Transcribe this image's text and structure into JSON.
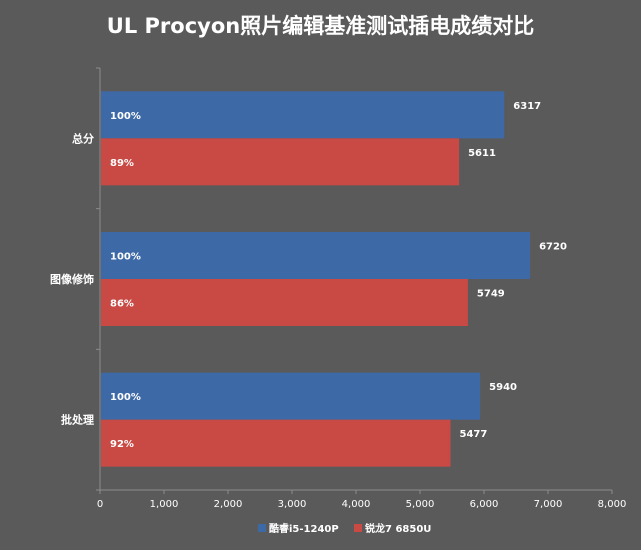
{
  "chart_data": {
    "type": "bar",
    "orientation": "horizontal",
    "title": "UL Procyon照片编辑基准测试插电成绩对比",
    "categories": [
      "总分",
      "图像修饰",
      "批处理"
    ],
    "series": [
      {
        "name": "酷睿i5-1240P",
        "color": "#3d6aa7",
        "values": [
          6317,
          6720,
          5940
        ],
        "bar_labels": [
          "100%",
          "100%",
          "100%"
        ]
      },
      {
        "name": "锐龙7 6850U",
        "color": "#c94a45",
        "values": [
          5611,
          5749,
          5477
        ],
        "bar_labels": [
          "89%",
          "86%",
          "92%"
        ]
      }
    ],
    "xlim": [
      0,
      8000
    ],
    "xticks": [
      0,
      1000,
      2000,
      3000,
      4000,
      5000,
      6000,
      7000,
      8000
    ],
    "xtick_labels": [
      "0",
      "1,000",
      "2,000",
      "3,000",
      "4,000",
      "5,000",
      "6,000",
      "7,000",
      "8,000"
    ],
    "grid": false,
    "legend_position": "bottom"
  },
  "style": {
    "background": "#5a5a5a",
    "text_color": "#ffffff",
    "axis_color": "#8c8c8c"
  }
}
